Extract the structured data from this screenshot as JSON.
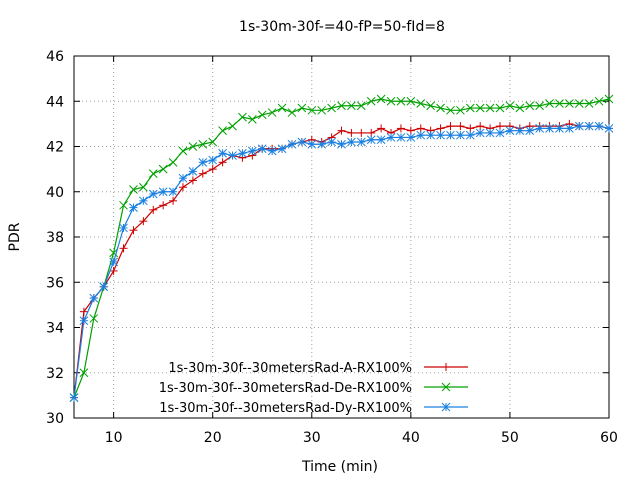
{
  "chart_data": {
    "type": "line",
    "title": "1s-30m-30f-=40-fP=50-fId=8",
    "xlabel": "Time (min)",
    "ylabel": "PDR",
    "xlim": [
      6,
      60
    ],
    "ylim": [
      30,
      46
    ],
    "xticks": [
      10,
      20,
      30,
      40,
      50,
      60
    ],
    "yticks": [
      30,
      32,
      34,
      36,
      38,
      40,
      42,
      44,
      46
    ],
    "grid": true,
    "legend_position": "bottom-left",
    "x": [
      6,
      7,
      8,
      9,
      10,
      11,
      12,
      13,
      14,
      15,
      16,
      17,
      18,
      19,
      20,
      21,
      22,
      23,
      24,
      25,
      26,
      27,
      28,
      29,
      30,
      31,
      32,
      33,
      34,
      35,
      36,
      37,
      38,
      39,
      40,
      41,
      42,
      43,
      44,
      45,
      46,
      47,
      48,
      49,
      50,
      51,
      52,
      53,
      54,
      55,
      56,
      57,
      58,
      59,
      60
    ],
    "series": [
      {
        "name": "1s-30m-30f--30metersRad-A-RX100%",
        "color": "#cc0000",
        "marker": "plus",
        "values": [
          30.9,
          34.7,
          35.3,
          35.8,
          36.5,
          37.5,
          38.3,
          38.7,
          39.2,
          39.4,
          39.6,
          40.2,
          40.5,
          40.8,
          41.0,
          41.3,
          41.6,
          41.5,
          41.6,
          41.9,
          41.9,
          41.9,
          42.1,
          42.2,
          42.3,
          42.2,
          42.4,
          42.7,
          42.6,
          42.6,
          42.6,
          42.8,
          42.6,
          42.8,
          42.7,
          42.8,
          42.7,
          42.8,
          42.9,
          42.9,
          42.8,
          42.9,
          42.8,
          42.9,
          42.9,
          42.8,
          42.9,
          42.9,
          42.9,
          42.9,
          43.0,
          42.9,
          42.9,
          42.9,
          42.8
        ]
      },
      {
        "name": "1s-30m-30f--30metersRad-De-RX100%",
        "color": "#00a000",
        "marker": "cross",
        "values": [
          30.9,
          32.0,
          34.4,
          35.8,
          37.3,
          39.4,
          40.1,
          40.2,
          40.8,
          41.0,
          41.3,
          41.8,
          42.0,
          42.1,
          42.2,
          42.7,
          42.9,
          43.3,
          43.2,
          43.4,
          43.5,
          43.7,
          43.5,
          43.7,
          43.6,
          43.6,
          43.7,
          43.8,
          43.8,
          43.8,
          44.0,
          44.1,
          44.0,
          44.0,
          44.0,
          43.9,
          43.8,
          43.7,
          43.6,
          43.6,
          43.7,
          43.7,
          43.7,
          43.7,
          43.8,
          43.7,
          43.8,
          43.8,
          43.9,
          43.9,
          43.9,
          43.9,
          43.9,
          44.0,
          44.1
        ]
      },
      {
        "name": "1s-30m-30f--30metersRad-Dy-RX100%",
        "color": "#1a80e0",
        "marker": "star",
        "values": [
          30.9,
          34.3,
          35.3,
          35.8,
          36.9,
          38.4,
          39.3,
          39.6,
          39.9,
          40.0,
          40.0,
          40.6,
          40.9,
          41.3,
          41.4,
          41.7,
          41.6,
          41.7,
          41.8,
          41.9,
          41.8,
          41.9,
          42.1,
          42.2,
          42.1,
          42.1,
          42.2,
          42.1,
          42.2,
          42.2,
          42.3,
          42.3,
          42.4,
          42.4,
          42.4,
          42.5,
          42.5,
          42.5,
          42.5,
          42.5,
          42.5,
          42.6,
          42.6,
          42.6,
          42.7,
          42.7,
          42.7,
          42.8,
          42.8,
          42.8,
          42.8,
          42.9,
          42.9,
          42.9,
          42.8
        ]
      }
    ]
  }
}
